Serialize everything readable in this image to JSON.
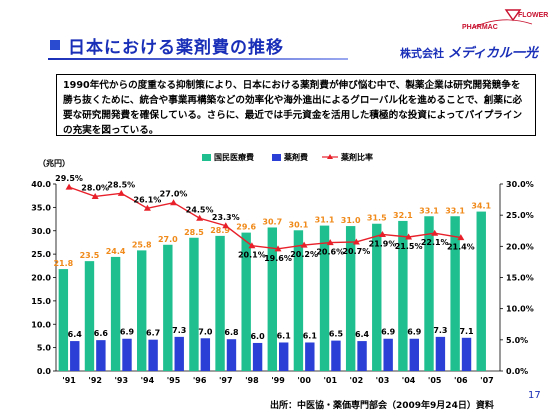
{
  "header": {
    "title": "日本における薬剤費の推移",
    "logo_pharmac": "PHARMAC",
    "logo_flower": "FLOWER",
    "company_prefix": "株式会社",
    "company_brand": "メディカル一光"
  },
  "description": "1990年代からの度重なる抑制策により、日本における薬剤費が伸び悩む中で、製薬企業は研究開発競争を勝ち抜くために、統合や事業再構築などの効率化や海外進出によるグローバル化を進めることで、創薬に必要な研究開発費を確保している。さらに、最近では手元資金を活用した積極的な投資によってパイプラインの充実を図っている。",
  "footer": {
    "source": "出所：中医協・薬価専門部会（2009年9月24日）資料",
    "page_number": "17"
  },
  "colors": {
    "medical_bar": "#1fbf8f",
    "drug_bar": "#2b3fd6",
    "ratio_line": "#e8202a",
    "medical_label": "#f08a1a",
    "title_blue": "#1a2fb8"
  },
  "chart_data": {
    "type": "bar",
    "ylabel_left": "（兆円）",
    "categories": [
      "'91",
      "'92",
      "'93",
      "'94",
      "'95",
      "'96",
      "'97",
      "'98",
      "'99",
      "'00",
      "'01",
      "'02",
      "'03",
      "'04",
      "'05",
      "'06",
      "'07"
    ],
    "ylim_left": [
      0,
      40
    ],
    "ylim_right": [
      0,
      30
    ],
    "yticks_left": [
      "0.0",
      "5.0",
      "10.0",
      "15.0",
      "20.0",
      "25.0",
      "30.0",
      "35.0",
      "40.0"
    ],
    "yticks_right": [
      "0.0%",
      "5.0%",
      "10.0%",
      "15.0%",
      "20.0%",
      "25.0%",
      "30.0%"
    ],
    "legend_position": "top-center",
    "series": [
      {
        "name": "国民医療費",
        "type": "bar",
        "values": [
          21.8,
          23.5,
          24.4,
          25.8,
          27.0,
          28.5,
          28.9,
          29.6,
          30.7,
          30.1,
          31.1,
          31.0,
          31.5,
          32.1,
          33.1,
          33.1,
          34.1
        ]
      },
      {
        "name": "薬剤費",
        "type": "bar",
        "values": [
          6.4,
          6.6,
          6.9,
          6.7,
          7.3,
          7.0,
          6.8,
          6.0,
          6.1,
          6.1,
          6.5,
          6.4,
          6.9,
          6.9,
          7.3,
          7.1,
          null
        ]
      },
      {
        "name": "薬剤比率",
        "type": "line",
        "axis": "right",
        "values": [
          29.5,
          28.0,
          28.5,
          26.1,
          27.0,
          24.5,
          23.3,
          20.1,
          19.6,
          20.2,
          20.6,
          20.7,
          21.9,
          21.5,
          22.1,
          21.4,
          null
        ],
        "labels": [
          "29.5%",
          "28.0%",
          "28.5%",
          "26.1%",
          "27.0%",
          "24.5%",
          "23.3%",
          "20.1%",
          "19.6%",
          "20.2%",
          "20.6%",
          "20.7%",
          "21.9%",
          "21.5%",
          "22.1%",
          "21.4%",
          ""
        ]
      }
    ]
  }
}
